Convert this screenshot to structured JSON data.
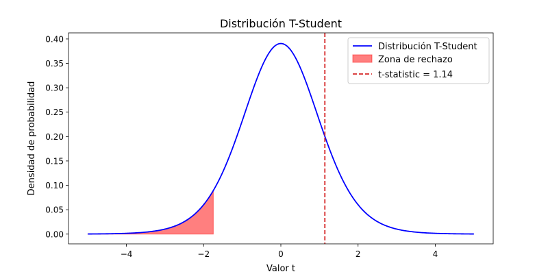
{
  "chart_data": {
    "type": "line",
    "title": "Distribución T-Student",
    "xlabel": "Valor t",
    "ylabel": "Densidad de probabilidad",
    "xlim": [
      -5.5,
      5.5
    ],
    "ylim": [
      -0.02,
      0.4125
    ],
    "x_ticks": [
      {
        "value": -4,
        "label": "−4"
      },
      {
        "value": -2,
        "label": "−2"
      },
      {
        "value": 0,
        "label": "0"
      },
      {
        "value": 2,
        "label": "2"
      },
      {
        "value": 4,
        "label": "4"
      }
    ],
    "y_ticks": [
      {
        "value": 0.0,
        "label": "0.00"
      },
      {
        "value": 0.05,
        "label": "0.05"
      },
      {
        "value": 0.1,
        "label": "0.10"
      },
      {
        "value": 0.15,
        "label": "0.15"
      },
      {
        "value": 0.2,
        "label": "0.20"
      },
      {
        "value": 0.25,
        "label": "0.25"
      },
      {
        "value": 0.3,
        "label": "0.30"
      },
      {
        "value": 0.35,
        "label": "0.35"
      },
      {
        "value": 0.4,
        "label": "0.40"
      }
    ],
    "series": [
      {
        "name": "Distribución T-Student",
        "kind": "line",
        "color": "#0000ff",
        "degrees_of_freedom": 12,
        "x_range": [
          -5,
          5
        ]
      },
      {
        "name": "Zona de rechazo",
        "kind": "fill",
        "color": "#ff0000",
        "opacity": 0.5,
        "x_range": [
          -5,
          -1.75
        ]
      },
      {
        "name": "t-statistic = 1.14",
        "kind": "vline",
        "color": "#d62728",
        "style": "dashed",
        "x": 1.14
      }
    ],
    "legend": {
      "placement": "top-right",
      "entries": [
        {
          "label": "Distribución T-Student",
          "kind": "line",
          "color": "#0000ff"
        },
        {
          "label": "Zona de rechazo",
          "kind": "patch",
          "color": "#ff0000"
        },
        {
          "label": "t-statistic = 1.14",
          "kind": "dashed",
          "color": "#d62728"
        }
      ]
    },
    "grid": false
  }
}
